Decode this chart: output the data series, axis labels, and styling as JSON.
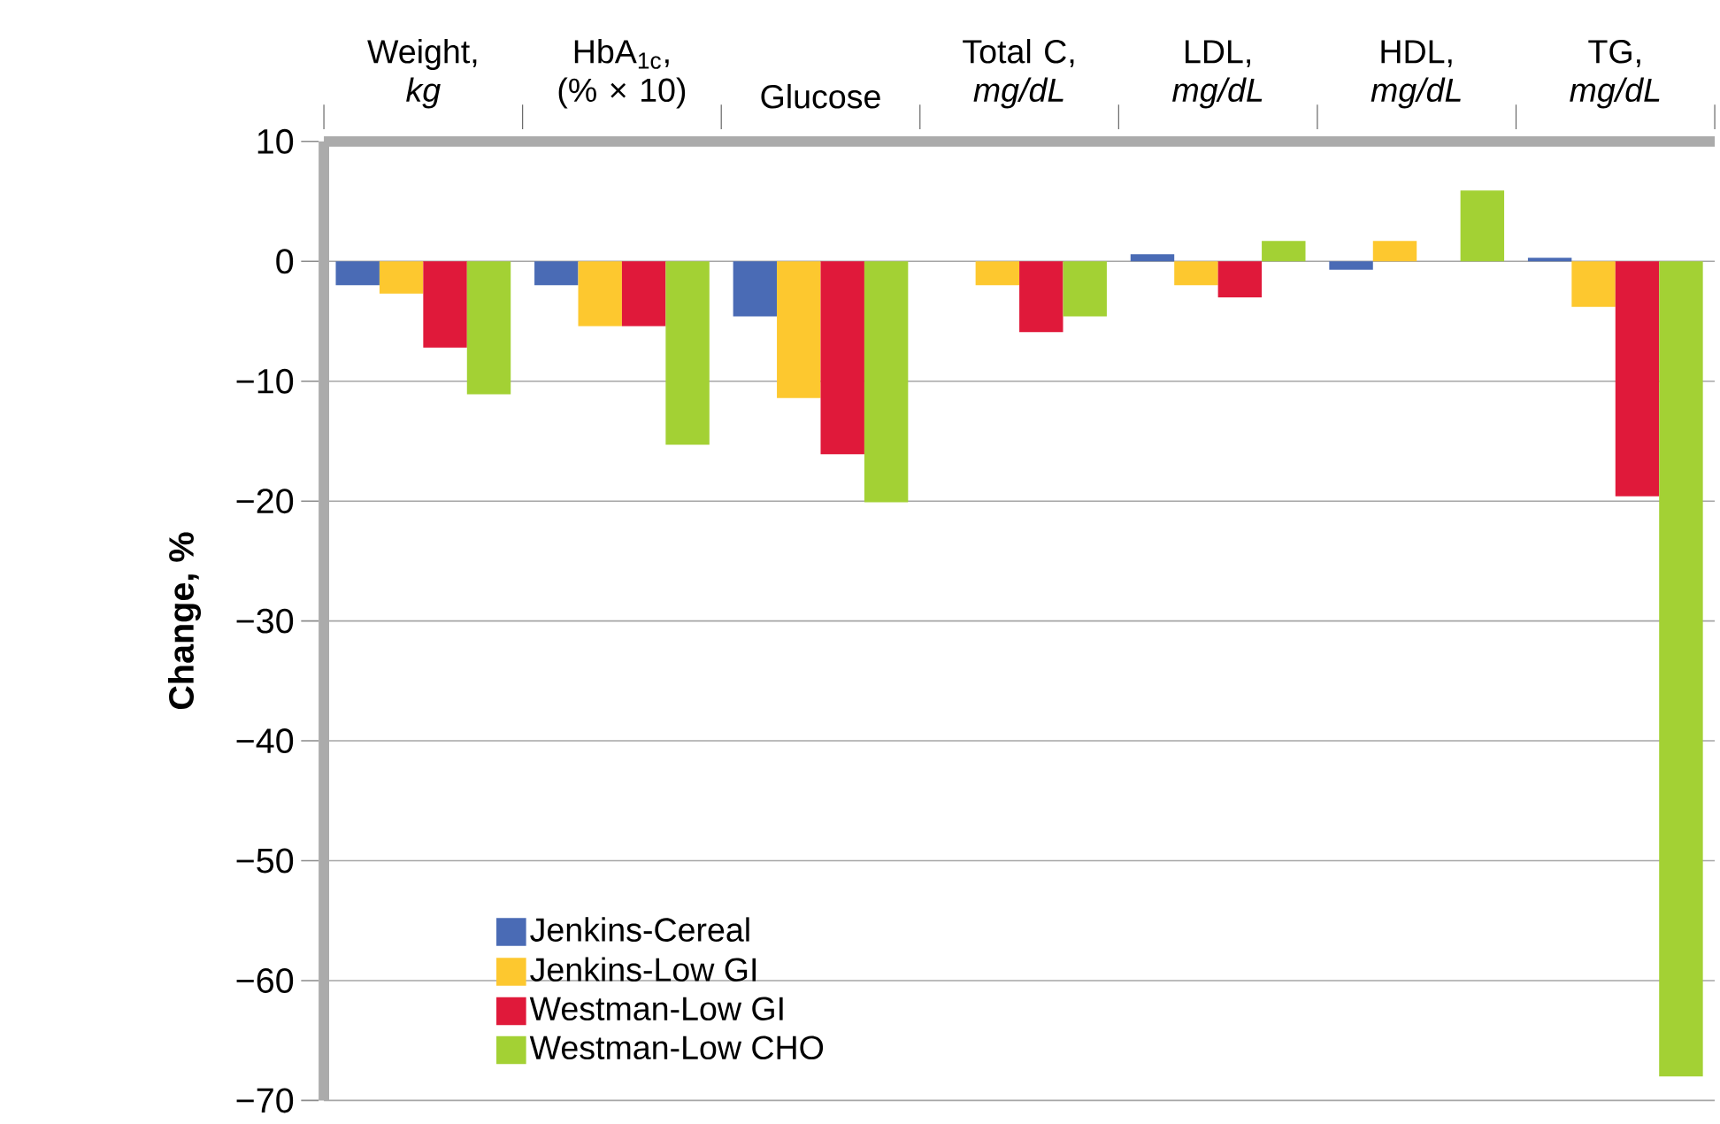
{
  "chart_data": {
    "type": "bar",
    "ylabel": "Change, %",
    "categories": [
      "Weight, *kg*",
      "HbA$_{1c}$, (% × 10)",
      "Glucose",
      "Total C, *mg/dL*",
      "LDL, *mg/dL*",
      "HDL, *mg/dL*",
      "TG, *mg/dL*"
    ],
    "series": [
      {
        "name": "Jenkins-Cereal",
        "color": "#4a6bb5",
        "values": [
          -2,
          -2,
          -4.6,
          null,
          0.6,
          -0.7,
          0.3
        ]
      },
      {
        "name": "Jenkins-Low GI",
        "color": "#fdc82f",
        "values": [
          -2.7,
          -5.4,
          -11.4,
          -2,
          -2,
          1.7,
          -3.8
        ]
      },
      {
        "name": "Westman-Low GI",
        "color": "#e0193a",
        "values": [
          -7.2,
          -5.4,
          -16.1,
          -5.9,
          -3,
          null,
          -19.6
        ]
      },
      {
        "name": "Westman-Low CHO",
        "color": "#a3d134",
        "values": [
          -11.1,
          -15.3,
          -20.1,
          -4.6,
          1.7,
          5.9,
          -68
        ]
      }
    ],
    "ylim": [
      -70,
      10
    ],
    "yticks": [
      {
        "value": 10,
        "label": "10"
      },
      {
        "value": 0,
        "label": "0"
      },
      {
        "value": -10,
        "label": "−10"
      },
      {
        "value": -20,
        "label": "−20"
      },
      {
        "value": -30,
        "label": "−30"
      },
      {
        "value": -40,
        "label": "−40"
      },
      {
        "value": -50,
        "label": "−50"
      },
      {
        "value": -60,
        "label": "−60"
      },
      {
        "value": -70,
        "label": "−70"
      }
    ],
    "grid": "y",
    "legend": "bottom left"
  }
}
